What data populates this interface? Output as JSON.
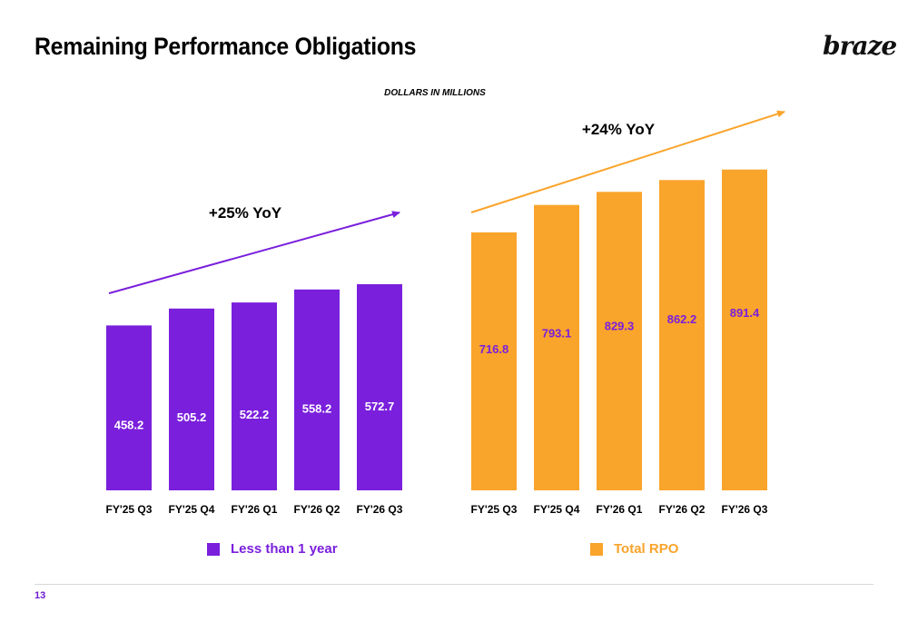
{
  "title": "Remaining Performance Obligations",
  "logo": "braze",
  "units_label": "DOLLARS IN MILLIONS",
  "page_number": "13",
  "chart_data": [
    {
      "type": "bar",
      "name": "Less than 1 year",
      "color": "#7a1fdc",
      "label_color": "#ffffff",
      "categories": [
        "FY'25 Q3",
        "FY'25 Q4",
        "FY'26 Q1",
        "FY'26 Q2",
        "FY'26 Q3"
      ],
      "values": [
        458.2,
        505.2,
        522.2,
        558.2,
        572.7
      ],
      "annotation": "+25% YoY",
      "legend": "Less than 1 year",
      "ylim": [
        0,
        1000
      ]
    },
    {
      "type": "bar",
      "name": "Total RPO",
      "color": "#f9a42b",
      "label_color": "#7a1fdc",
      "categories": [
        "FY'25 Q3",
        "FY'25 Q4",
        "FY'26 Q1",
        "FY'26 Q2",
        "FY'26 Q3"
      ],
      "values": [
        716.8,
        793.1,
        829.3,
        862.2,
        891.4
      ],
      "annotation": "+24% YoY",
      "legend": "Total RPO",
      "ylim": [
        0,
        1000
      ]
    }
  ]
}
